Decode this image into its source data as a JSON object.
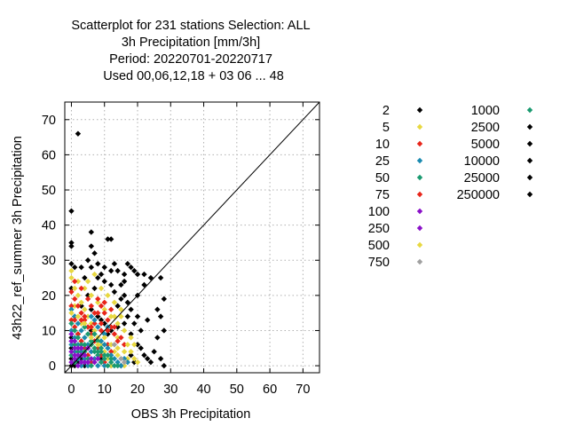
{
  "chart_data": {
    "type": "scatter",
    "title_lines": [
      "Scatterplot for  231 stations Selection: ALL",
      "3h Precipitation [mm/3h]",
      "Period: 20220701-20220717",
      "Used  00,06,12,18  + 03 06 ... 48"
    ],
    "xlabel": "OBS 3h Precipitation",
    "ylabel": "43h22_ref_summer 3h Precipitation",
    "xlim": [
      -2,
      75
    ],
    "ylim": [
      -2,
      75
    ],
    "xticks": [
      0,
      10,
      20,
      30,
      40,
      50,
      60,
      70
    ],
    "yticks": [
      0,
      10,
      20,
      30,
      40,
      50,
      60,
      70
    ],
    "grid": true,
    "diagonal": true,
    "legend_placement": "right",
    "legend_columns": [
      [
        {
          "label": "2",
          "color": "#000000"
        },
        {
          "label": "5",
          "color": "#e8d840"
        },
        {
          "label": "10",
          "color": "#e8251a"
        },
        {
          "label": "25",
          "color": "#1a8ab0"
        },
        {
          "label": "50",
          "color": "#1a9a70"
        },
        {
          "label": "75",
          "color": "#e8251a"
        },
        {
          "label": "100",
          "color": "#8a10c8"
        },
        {
          "label": "250",
          "color": "#8a10c8"
        },
        {
          "label": "500",
          "color": "#e8d840"
        },
        {
          "label": "750",
          "color": "#a0a0a0"
        }
      ],
      [
        {
          "label": "1000",
          "color": "#1a9a70"
        },
        {
          "label": "2500",
          "color": "#000000"
        },
        {
          "label": "5000",
          "color": "#000000"
        },
        {
          "label": "10000",
          "color": "#000000"
        },
        {
          "label": "25000",
          "color": "#000000"
        },
        {
          "label": "250000",
          "color": "#000000"
        }
      ]
    ],
    "series": [
      {
        "name": "2",
        "color": "#000000",
        "points": [
          [
            2,
            66
          ],
          [
            0,
            44
          ],
          [
            0,
            35
          ],
          [
            0,
            34
          ],
          [
            6,
            38
          ],
          [
            6,
            34
          ],
          [
            11,
            36
          ],
          [
            12,
            36
          ],
          [
            7,
            32
          ],
          [
            5,
            30
          ],
          [
            0,
            29
          ],
          [
            1,
            28
          ],
          [
            3,
            28
          ],
          [
            8,
            29
          ],
          [
            10,
            28
          ],
          [
            16,
            26
          ],
          [
            17,
            29
          ],
          [
            18,
            28
          ],
          [
            19,
            27
          ],
          [
            20,
            26
          ],
          [
            22,
            26
          ],
          [
            24,
            25
          ],
          [
            22,
            23
          ],
          [
            27,
            25
          ],
          [
            28,
            19
          ],
          [
            26,
            16
          ],
          [
            27,
            14
          ],
          [
            28,
            10
          ],
          [
            26,
            8
          ],
          [
            25,
            4
          ],
          [
            27,
            2
          ],
          [
            28,
            0
          ],
          [
            24,
            1
          ],
          [
            23,
            2
          ],
          [
            22,
            3
          ],
          [
            21,
            5
          ],
          [
            20,
            6
          ],
          [
            18,
            9
          ],
          [
            19,
            12
          ],
          [
            17,
            14
          ],
          [
            17,
            18
          ],
          [
            15,
            19
          ],
          [
            13,
            21
          ],
          [
            12,
            23
          ],
          [
            10,
            24
          ],
          [
            9,
            26
          ],
          [
            6,
            28
          ],
          [
            8,
            25
          ],
          [
            12,
            27
          ],
          [
            13,
            29
          ],
          [
            14,
            27
          ],
          [
            4,
            25
          ],
          [
            15,
            23
          ],
          [
            16,
            20
          ],
          [
            20,
            20
          ],
          [
            18,
            16
          ],
          [
            0,
            8
          ],
          [
            0,
            5
          ],
          [
            0,
            2
          ],
          [
            0,
            0
          ],
          [
            1,
            0
          ],
          [
            2,
            1
          ],
          [
            3,
            2
          ],
          [
            4,
            0
          ],
          [
            3,
            4
          ],
          [
            6,
            10
          ],
          [
            9,
            13
          ],
          [
            11,
            9
          ],
          [
            12,
            10
          ],
          [
            16,
            12
          ],
          [
            14,
            11
          ],
          [
            10,
            12
          ],
          [
            8,
            14
          ],
          [
            7,
            22
          ],
          [
            5,
            20
          ],
          [
            14,
            17
          ],
          [
            3,
            17
          ],
          [
            16,
            24
          ],
          [
            0,
            22
          ],
          [
            1,
            14
          ],
          [
            2,
            9
          ],
          [
            18,
            3
          ],
          [
            19,
            1
          ],
          [
            9,
            2
          ],
          [
            12,
            0
          ],
          [
            15,
            0
          ],
          [
            6,
            16
          ],
          [
            20,
            14
          ],
          [
            23,
            13
          ],
          [
            21,
            10
          ]
        ]
      },
      {
        "name": "5",
        "color": "#e8d840",
        "points": [
          [
            0,
            27
          ],
          [
            0,
            25
          ],
          [
            1,
            22
          ],
          [
            2,
            20
          ],
          [
            3,
            18
          ],
          [
            4,
            16
          ],
          [
            5,
            14
          ],
          [
            6,
            12
          ],
          [
            7,
            10
          ],
          [
            8,
            8
          ],
          [
            9,
            6
          ],
          [
            10,
            4
          ],
          [
            11,
            2
          ],
          [
            12,
            0
          ],
          [
            2,
            24
          ],
          [
            4,
            22
          ],
          [
            6,
            20
          ],
          [
            8,
            18
          ],
          [
            10,
            16
          ],
          [
            12,
            14
          ],
          [
            14,
            12
          ],
          [
            16,
            10
          ],
          [
            18,
            8
          ],
          [
            19,
            6
          ],
          [
            18,
            4
          ],
          [
            17,
            2
          ],
          [
            16,
            0
          ],
          [
            13,
            4
          ],
          [
            14,
            8
          ],
          [
            3,
            12
          ],
          [
            1,
            17
          ],
          [
            5,
            24
          ],
          [
            7,
            26
          ],
          [
            9,
            22
          ],
          [
            11,
            20
          ],
          [
            15,
            16
          ],
          [
            13,
            18
          ],
          [
            2,
            5
          ],
          [
            4,
            8
          ],
          [
            6,
            6
          ],
          [
            14,
            3
          ],
          [
            19,
            2
          ],
          [
            20,
            1
          ]
        ]
      },
      {
        "name": "10",
        "color": "#e8251a",
        "points": [
          [
            0,
            21
          ],
          [
            1,
            19
          ],
          [
            2,
            17
          ],
          [
            3,
            15
          ],
          [
            4,
            13
          ],
          [
            5,
            11
          ],
          [
            6,
            9
          ],
          [
            7,
            7
          ],
          [
            8,
            5
          ],
          [
            9,
            3
          ],
          [
            10,
            1
          ],
          [
            0,
            13
          ],
          [
            1,
            11
          ],
          [
            2,
            9
          ],
          [
            3,
            7
          ],
          [
            4,
            5
          ],
          [
            5,
            3
          ],
          [
            6,
            1
          ],
          [
            11,
            13
          ],
          [
            10,
            15
          ],
          [
            9,
            17
          ],
          [
            12,
            11
          ],
          [
            13,
            9
          ],
          [
            8,
            19
          ],
          [
            7,
            15
          ],
          [
            6,
            17
          ],
          [
            14,
            7
          ],
          [
            11,
            6
          ],
          [
            12,
            4
          ],
          [
            0,
            17
          ],
          [
            1,
            24
          ],
          [
            3,
            22
          ],
          [
            5,
            19
          ],
          [
            7,
            12
          ],
          [
            9,
            10
          ]
        ]
      },
      {
        "name": "25",
        "color": "#1a8ab0",
        "points": [
          [
            0,
            16
          ],
          [
            1,
            14
          ],
          [
            2,
            12
          ],
          [
            3,
            10
          ],
          [
            4,
            8
          ],
          [
            5,
            6
          ],
          [
            6,
            4
          ],
          [
            7,
            2
          ],
          [
            8,
            0
          ],
          [
            0,
            10
          ],
          [
            1,
            8
          ],
          [
            2,
            6
          ],
          [
            3,
            4
          ],
          [
            4,
            2
          ],
          [
            5,
            0
          ],
          [
            9,
            7
          ],
          [
            10,
            6
          ],
          [
            11,
            5
          ],
          [
            12,
            3
          ],
          [
            13,
            2
          ],
          [
            14,
            1
          ],
          [
            15,
            0
          ],
          [
            8,
            11
          ],
          [
            7,
            13
          ],
          [
            6,
            14
          ],
          [
            16,
            2
          ],
          [
            17,
            1
          ],
          [
            0,
            6
          ],
          [
            1,
            4
          ],
          [
            2,
            2
          ],
          [
            3,
            0
          ],
          [
            10,
            9
          ],
          [
            11,
            11
          ],
          [
            9,
            1
          ],
          [
            10,
            0
          ]
        ]
      },
      {
        "name": "50",
        "color": "#1a9a70",
        "points": [
          [
            0,
            12
          ],
          [
            1,
            10
          ],
          [
            2,
            8
          ],
          [
            3,
            6
          ],
          [
            4,
            4
          ],
          [
            5,
            2
          ],
          [
            6,
            0
          ],
          [
            0,
            3
          ],
          [
            1,
            1
          ],
          [
            7,
            5
          ],
          [
            8,
            3
          ],
          [
            9,
            1
          ],
          [
            11,
            0
          ],
          [
            13,
            0
          ],
          [
            14,
            0
          ],
          [
            5,
            9
          ],
          [
            6,
            7
          ],
          [
            7,
            9
          ],
          [
            8,
            7
          ],
          [
            9,
            5
          ],
          [
            4,
            11
          ],
          [
            10,
            3
          ],
          [
            12,
            1
          ],
          [
            1,
            6
          ],
          [
            2,
            4
          ]
        ]
      },
      {
        "name": "75",
        "color": "#e8251a",
        "points": [
          [
            1,
            13
          ],
          [
            3,
            13
          ],
          [
            6,
            11
          ],
          [
            9,
            12
          ],
          [
            11,
            10
          ],
          [
            13,
            11
          ],
          [
            15,
            8
          ],
          [
            16,
            6
          ],
          [
            4,
            14
          ],
          [
            8,
            15
          ],
          [
            10,
            18
          ],
          [
            12,
            16
          ]
        ]
      },
      {
        "name": "100",
        "color": "#8a10c8",
        "points": [
          [
            0,
            7
          ],
          [
            1,
            5
          ],
          [
            2,
            3
          ],
          [
            3,
            1
          ],
          [
            0,
            4
          ],
          [
            1,
            2
          ],
          [
            2,
            0
          ],
          [
            4,
            3
          ],
          [
            5,
            1
          ],
          [
            3,
            5
          ],
          [
            0,
            9
          ],
          [
            6,
            2
          ]
        ]
      },
      {
        "name": "250",
        "color": "#8a10c8",
        "points": [
          [
            1,
            7
          ],
          [
            2,
            5
          ],
          [
            3,
            3
          ],
          [
            4,
            1
          ],
          [
            0,
            1
          ],
          [
            1,
            3
          ],
          [
            7,
            1
          ],
          [
            8,
            2
          ],
          [
            5,
            5
          ]
        ]
      },
      {
        "name": "500",
        "color": "#e8d840",
        "points": [
          [
            0,
            15
          ],
          [
            2,
            14
          ],
          [
            4,
            12
          ],
          [
            6,
            8
          ],
          [
            8,
            6
          ],
          [
            10,
            8
          ],
          [
            12,
            6
          ],
          [
            14,
            5
          ],
          [
            16,
            4
          ],
          [
            17,
            6
          ],
          [
            15,
            14
          ],
          [
            13,
            14
          ]
        ]
      },
      {
        "name": "750",
        "color": "#a0a0a0",
        "points": [
          [
            15,
            2
          ],
          [
            16,
            1
          ],
          [
            13,
            6
          ]
        ]
      },
      {
        "name": "1000",
        "color": "#1a9a70",
        "points": [
          [
            7,
            4
          ],
          [
            9,
            4
          ],
          [
            11,
            3
          ],
          [
            12,
            2
          ],
          [
            10,
            2
          ],
          [
            8,
            4
          ],
          [
            6,
            6
          ],
          [
            4,
            6
          ]
        ]
      }
    ]
  }
}
